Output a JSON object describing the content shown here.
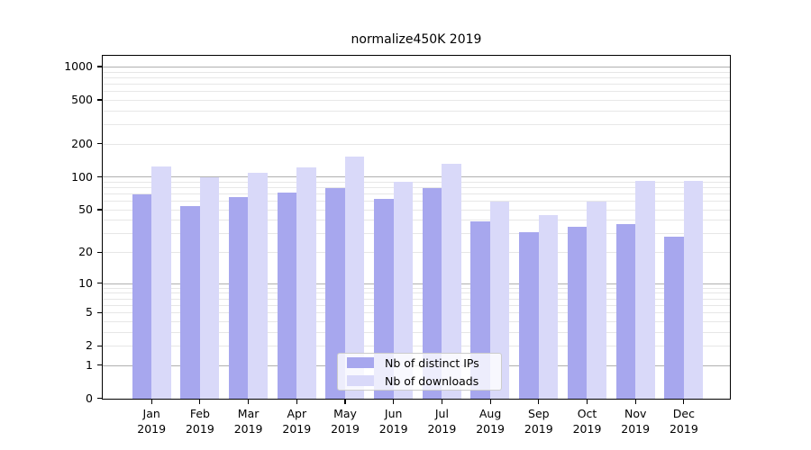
{
  "title": "normalize450K 2019",
  "colors": {
    "ips_bar": "#a7a7ee",
    "downloads_bar": "#d9d9f9",
    "grid_major": "#b0b0b0",
    "grid_minor": "#e7e7e7",
    "axis": "#000000",
    "legend_border": "#cccccc"
  },
  "chart_data": {
    "type": "bar",
    "title": "normalize450K 2019",
    "categories": [
      "Jan",
      "Feb",
      "Mar",
      "Apr",
      "May",
      "Jun",
      "Jul",
      "Aug",
      "Sep",
      "Oct",
      "Nov",
      "Dec"
    ],
    "year_label": "2019",
    "series": [
      {
        "name": "Nb of distinct IPs",
        "color": "#a7a7ee",
        "values": [
          70,
          54,
          66,
          72,
          79,
          63,
          79,
          39,
          31,
          35,
          37,
          28
        ]
      },
      {
        "name": "Nb of downloads",
        "color": "#d9d9f9",
        "values": [
          125,
          100,
          110,
          123,
          154,
          91,
          131,
          60,
          45,
          60,
          92,
          93
        ]
      }
    ],
    "y_scale": "log10(1+x)",
    "y_ticks": [
      0,
      1,
      2,
      5,
      10,
      20,
      50,
      100,
      200,
      500,
      1000
    ],
    "y_minor_gridlines": [
      2,
      3,
      4,
      5,
      6,
      7,
      8,
      9,
      20,
      30,
      40,
      50,
      60,
      70,
      80,
      90,
      200,
      300,
      400,
      500,
      600,
      700,
      800,
      900
    ],
    "ylim": [
      0,
      1250
    ],
    "grid": true,
    "legend_position": "lower center"
  }
}
